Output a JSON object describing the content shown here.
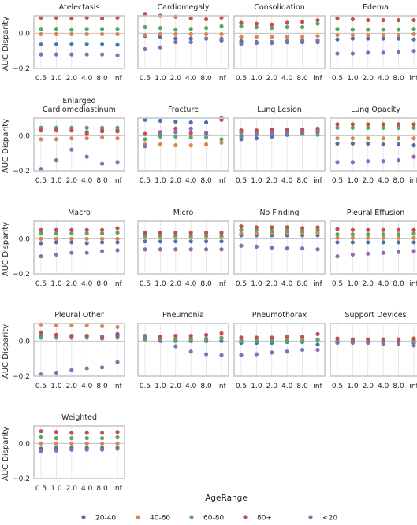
{
  "chart_data": {
    "type": "scatter",
    "layout": "facet-grid",
    "ylabel": "AUC Disparity",
    "x_ticks": [
      "0.5",
      "1.0",
      "2.0",
      "4.0",
      "8.0",
      "inf"
    ],
    "ylim": [
      -0.2,
      0.1
    ],
    "y_ticks": [
      0.0,
      -0.2
    ],
    "y_tick_labels": [
      "0.0",
      "−0.2"
    ],
    "grid": "vertical",
    "reference_line": 0.0,
    "legend": {
      "title": "AgeRange",
      "placement": "bottom",
      "entries": [
        "20-40",
        "40-60",
        "60-80",
        "80+",
        "<20"
      ]
    },
    "colors": {
      "20-40": "#4c72b0",
      "40-60": "#dd8452",
      "60-80": "#55a868",
      "80+": "#c44e52",
      "<20": "#8172b3"
    },
    "panels": [
      {
        "title": "Atelectasis",
        "series": {
          "20-40": [
            -0.06,
            -0.06,
            -0.06,
            -0.06,
            -0.06,
            -0.065
          ],
          "40-60": [
            -0.005,
            -0.005,
            -0.005,
            -0.005,
            -0.005,
            -0.005
          ],
          "60-80": [
            0.025,
            0.025,
            0.02,
            0.025,
            0.025,
            0.025
          ],
          "80+": [
            0.09,
            0.09,
            0.085,
            0.09,
            0.085,
            0.09
          ],
          "<20": [
            -0.12,
            -0.12,
            -0.12,
            -0.12,
            -0.12,
            -0.125
          ]
        }
      },
      {
        "title": "Cardiomegaly",
        "series": {
          "20-40": [
            -0.015,
            -0.02,
            -0.03,
            -0.03,
            -0.03,
            -0.04
          ],
          "40-60": [
            -0.01,
            -0.005,
            -0.005,
            -0.005,
            -0.005,
            -0.005
          ],
          "60-80": [
            0.035,
            0.03,
            0.02,
            0.025,
            0.03,
            0.04
          ],
          "80+": [
            0.11,
            0.1,
            0.095,
            0.085,
            0.08,
            0.09
          ],
          "<20": [
            -0.09,
            -0.08,
            -0.05,
            -0.05,
            -0.03,
            -0.03
          ]
        }
      },
      {
        "title": "Consolidation",
        "series": {
          "20-40": [
            -0.045,
            -0.05,
            -0.05,
            -0.05,
            -0.05,
            -0.05
          ],
          "40-60": [
            -0.02,
            -0.02,
            -0.02,
            -0.02,
            -0.02,
            -0.015
          ],
          "60-80": [
            0.04,
            0.035,
            0.03,
            0.035,
            0.035,
            0.055
          ],
          "80+": [
            0.06,
            0.055,
            0.05,
            0.06,
            0.065,
            0.075
          ],
          "<20": [
            -0.06,
            -0.055,
            -0.055,
            -0.045,
            -0.04,
            -0.04
          ]
        }
      },
      {
        "title": "Edema",
        "series": {
          "20-40": [
            -0.035,
            -0.03,
            -0.03,
            -0.03,
            -0.03,
            -0.035
          ],
          "40-60": [
            -0.01,
            -0.01,
            -0.01,
            -0.01,
            -0.01,
            -0.005
          ],
          "60-80": [
            0.025,
            0.02,
            0.02,
            0.02,
            0.02,
            0.025
          ],
          "80+": [
            0.085,
            0.08,
            0.075,
            0.075,
            0.075,
            0.075
          ],
          "<20": [
            -0.115,
            -0.115,
            -0.11,
            -0.11,
            -0.105,
            -0.1
          ]
        }
      },
      {
        "title": "Enlarged\nCardiomediastinum",
        "series": {
          "20-40": [
            0.04,
            0.04,
            0.03,
            0.02,
            0.025,
            0.03
          ],
          "40-60": [
            -0.02,
            -0.02,
            -0.015,
            -0.015,
            -0.01,
            -0.015
          ],
          "60-80": [
            0.045,
            0.045,
            0.045,
            0.045,
            0.045,
            0.045
          ],
          "80+": [
            0.03,
            0.03,
            0.03,
            0.01,
            0.03,
            0.025
          ],
          "<20": [
            -0.19,
            -0.14,
            -0.08,
            -0.12,
            -0.16,
            -0.15
          ]
        }
      },
      {
        "title": "Fracture",
        "series": {
          "20-40": [
            0.09,
            0.085,
            0.08,
            0.075,
            0.075,
            0.095
          ],
          "40-60": [
            -0.05,
            -0.05,
            -0.055,
            -0.055,
            -0.05,
            -0.04
          ],
          "60-80": [
            -0.02,
            -0.005,
            -0.005,
            -0.01,
            -0.01,
            -0.02
          ],
          "80+": [
            0.01,
            0.02,
            0.04,
            0.015,
            0.015,
            0.09
          ],
          "<20": [
            -0.06,
            0.01,
            0.02,
            0.04,
            0.01,
            0.1
          ]
        }
      },
      {
        "title": "Lung Lesion",
        "series": {
          "20-40": [
            -0.02,
            -0.015,
            -0.005,
            0.005,
            0.015,
            0.02
          ],
          "40-60": [
            0.025,
            0.025,
            0.02,
            0.02,
            0.025,
            0.035
          ],
          "60-80": [
            0.015,
            0.015,
            0.01,
            0.01,
            0.01,
            0.005
          ],
          "80+": [
            0.03,
            0.03,
            0.035,
            0.035,
            0.035,
            0.04
          ],
          "<20": [
            -0.005,
            0.005,
            0.015,
            0.015,
            0.02,
            0.025
          ]
        }
      },
      {
        "title": "Lung Opacity",
        "series": {
          "20-40": [
            -0.045,
            -0.045,
            -0.045,
            -0.05,
            -0.05,
            -0.055
          ],
          "40-60": [
            -0.015,
            -0.015,
            -0.015,
            -0.015,
            -0.015,
            -0.015
          ],
          "60-80": [
            0.045,
            0.045,
            0.045,
            0.045,
            0.045,
            0.045
          ],
          "80+": [
            0.065,
            0.065,
            0.065,
            0.065,
            0.065,
            0.065
          ],
          "<20": [
            -0.15,
            -0.15,
            -0.145,
            -0.145,
            -0.14,
            -0.12
          ]
        }
      },
      {
        "title": "Macro",
        "series": {
          "20-40": [
            -0.025,
            -0.02,
            -0.02,
            -0.025,
            -0.02,
            -0.02
          ],
          "40-60": [
            0.0,
            0.0,
            0.0,
            0.0,
            0.0,
            0.0
          ],
          "60-80": [
            0.03,
            0.03,
            0.03,
            0.03,
            0.03,
            0.035
          ],
          "80+": [
            0.05,
            0.05,
            0.05,
            0.05,
            0.05,
            0.06
          ],
          "<20": [
            -0.1,
            -0.09,
            -0.08,
            -0.08,
            -0.07,
            -0.065
          ]
        }
      },
      {
        "title": "Micro",
        "series": {
          "20-40": [
            -0.015,
            -0.015,
            -0.015,
            -0.015,
            -0.015,
            -0.015
          ],
          "40-60": [
            0.01,
            0.01,
            0.01,
            0.01,
            0.01,
            0.01
          ],
          "60-80": [
            0.02,
            0.02,
            0.02,
            0.02,
            0.02,
            0.02
          ],
          "80+": [
            0.035,
            0.035,
            0.035,
            0.035,
            0.035,
            0.035
          ],
          "<20": [
            -0.06,
            -0.06,
            -0.06,
            -0.06,
            -0.06,
            -0.06
          ]
        }
      },
      {
        "title": "No Finding",
        "series": {
          "20-40": [
            0.02,
            0.02,
            0.02,
            0.02,
            0.02,
            0.02
          ],
          "40-60": [
            0.03,
            0.03,
            0.035,
            0.035,
            0.035,
            0.035
          ],
          "60-80": [
            0.05,
            0.05,
            0.045,
            0.045,
            0.045,
            0.05
          ],
          "80+": [
            0.07,
            0.065,
            0.065,
            0.065,
            0.06,
            0.065
          ],
          "<20": [
            -0.04,
            -0.045,
            -0.05,
            -0.055,
            -0.055,
            -0.06
          ]
        }
      },
      {
        "title": "Pleural Effusion",
        "series": {
          "20-40": [
            -0.02,
            -0.02,
            -0.02,
            -0.02,
            -0.02,
            -0.02
          ],
          "40-60": [
            0.005,
            0.005,
            0.005,
            0.005,
            0.005,
            0.005
          ],
          "60-80": [
            0.025,
            0.025,
            0.025,
            0.025,
            0.025,
            0.03
          ],
          "80+": [
            0.055,
            0.05,
            0.05,
            0.05,
            0.05,
            0.05
          ],
          "<20": [
            -0.1,
            -0.09,
            -0.085,
            -0.08,
            -0.075,
            -0.07
          ]
        }
      },
      {
        "title": "Pleural Other",
        "series": {
          "20-40": [
            0.03,
            0.035,
            0.03,
            0.03,
            0.025,
            0.04
          ],
          "40-60": [
            0.095,
            0.09,
            0.09,
            0.09,
            0.085,
            0.08
          ],
          "60-80": [
            0.02,
            0.02,
            0.02,
            0.02,
            0.015,
            0.02
          ],
          "80+": [
            0.05,
            0.035,
            0.025,
            0.03,
            0.02,
            0.03
          ],
          "<20": [
            -0.19,
            -0.18,
            -0.165,
            -0.155,
            -0.15,
            -0.12
          ]
        }
      },
      {
        "title": "Pneumonia",
        "series": {
          "20-40": [
            0.02,
            0.01,
            0.0,
            0.0,
            0.0,
            0.0
          ],
          "40-60": [
            0.015,
            0.015,
            0.015,
            0.015,
            0.015,
            0.02
          ],
          "60-80": [
            0.01,
            0.01,
            0.005,
            0.01,
            0.01,
            0.015
          ],
          "80+": [
            0.025,
            0.025,
            0.03,
            0.03,
            0.035,
            0.045
          ],
          "<20": [
            0.03,
            0.0,
            -0.03,
            -0.06,
            -0.075,
            -0.08
          ]
        }
      },
      {
        "title": "Pneumothorax",
        "series": {
          "20-40": [
            -0.01,
            -0.01,
            -0.01,
            -0.005,
            -0.005,
            -0.02
          ],
          "40-60": [
            0.005,
            0.005,
            0.01,
            0.01,
            0.01,
            0.01
          ],
          "60-80": [
            0.0,
            0.0,
            0.0,
            0.0,
            0.0,
            0.005
          ],
          "80+": [
            0.02,
            0.02,
            0.02,
            0.025,
            0.025,
            0.04
          ],
          "<20": [
            -0.08,
            -0.075,
            -0.065,
            -0.06,
            -0.05,
            -0.05
          ]
        }
      },
      {
        "title": "Support Devices",
        "series": {
          "20-40": [
            -0.005,
            -0.005,
            -0.005,
            -0.005,
            -0.005,
            -0.01
          ],
          "40-60": [
            0.0,
            0.0,
            0.0,
            0.0,
            0.0,
            0.0
          ],
          "60-80": [
            0.0,
            0.0,
            0.0,
            0.005,
            0.005,
            0.005
          ],
          "80+": [
            0.015,
            0.01,
            0.01,
            0.01,
            0.01,
            0.015
          ],
          "<20": [
            -0.01,
            -0.01,
            -0.01,
            -0.015,
            -0.015,
            -0.025
          ]
        }
      },
      {
        "title": "Weighted",
        "series": {
          "20-40": [
            -0.03,
            -0.025,
            -0.025,
            -0.025,
            -0.025,
            -0.025
          ],
          "40-60": [
            0.0,
            0.0,
            0.0,
            0.0,
            0.0,
            0.0
          ],
          "60-80": [
            0.035,
            0.03,
            0.03,
            0.03,
            0.03,
            0.035
          ],
          "80+": [
            0.07,
            0.065,
            0.06,
            0.06,
            0.06,
            0.065
          ],
          "<20": [
            -0.045,
            -0.04,
            -0.035,
            -0.035,
            -0.035,
            -0.03
          ]
        }
      }
    ]
  }
}
